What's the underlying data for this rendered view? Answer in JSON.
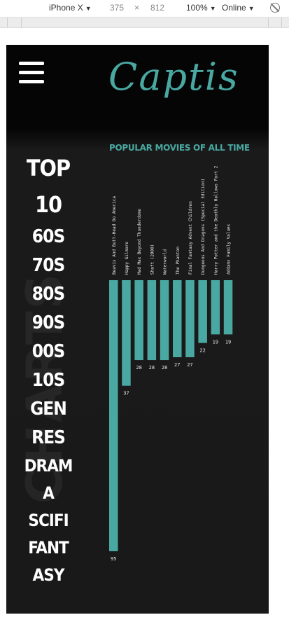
{
  "devtools": {
    "device": "iPhone X",
    "width": "375",
    "times": "×",
    "height": "812",
    "zoom": "100%",
    "network": "Online"
  },
  "header": {
    "logo": "Captis",
    "menu_icon": "hamburger-menu-icon"
  },
  "watermark": "CHARTS",
  "nav": {
    "items": [
      "TOP",
      "10",
      "60S",
      "70S",
      "80S",
      "90S",
      "00S",
      "10S",
      "GEN",
      "RES",
      "DRAM",
      "A",
      "SCIFI",
      "FANT",
      "ASY"
    ]
  },
  "colors": {
    "accent": "#4aa8a2",
    "background": "#191919",
    "text": "#ffffff"
  },
  "chart_data": {
    "type": "bar",
    "title": "POPULAR MOVIES OF ALL TIME",
    "orientation": "downward",
    "categories": [
      "Beavis And Butt-Head Do America",
      "Happy Gilmore",
      "Mad Max Beyond Thunderdome",
      "Shaft (2000)",
      "Waterworld",
      "The Phantom",
      "Final Fantasy Advent Children",
      "Dungeons And Dragons (Special Edition)",
      "Harry Potter and the Deathly Hallows Part 2",
      "Addams Family Values"
    ],
    "values": [
      95,
      37,
      28,
      28,
      28,
      27,
      27,
      22,
      19,
      19
    ],
    "ylim": [
      0,
      95
    ],
    "bar_color": "#4aa8a2",
    "grid": false,
    "legend": "none"
  }
}
